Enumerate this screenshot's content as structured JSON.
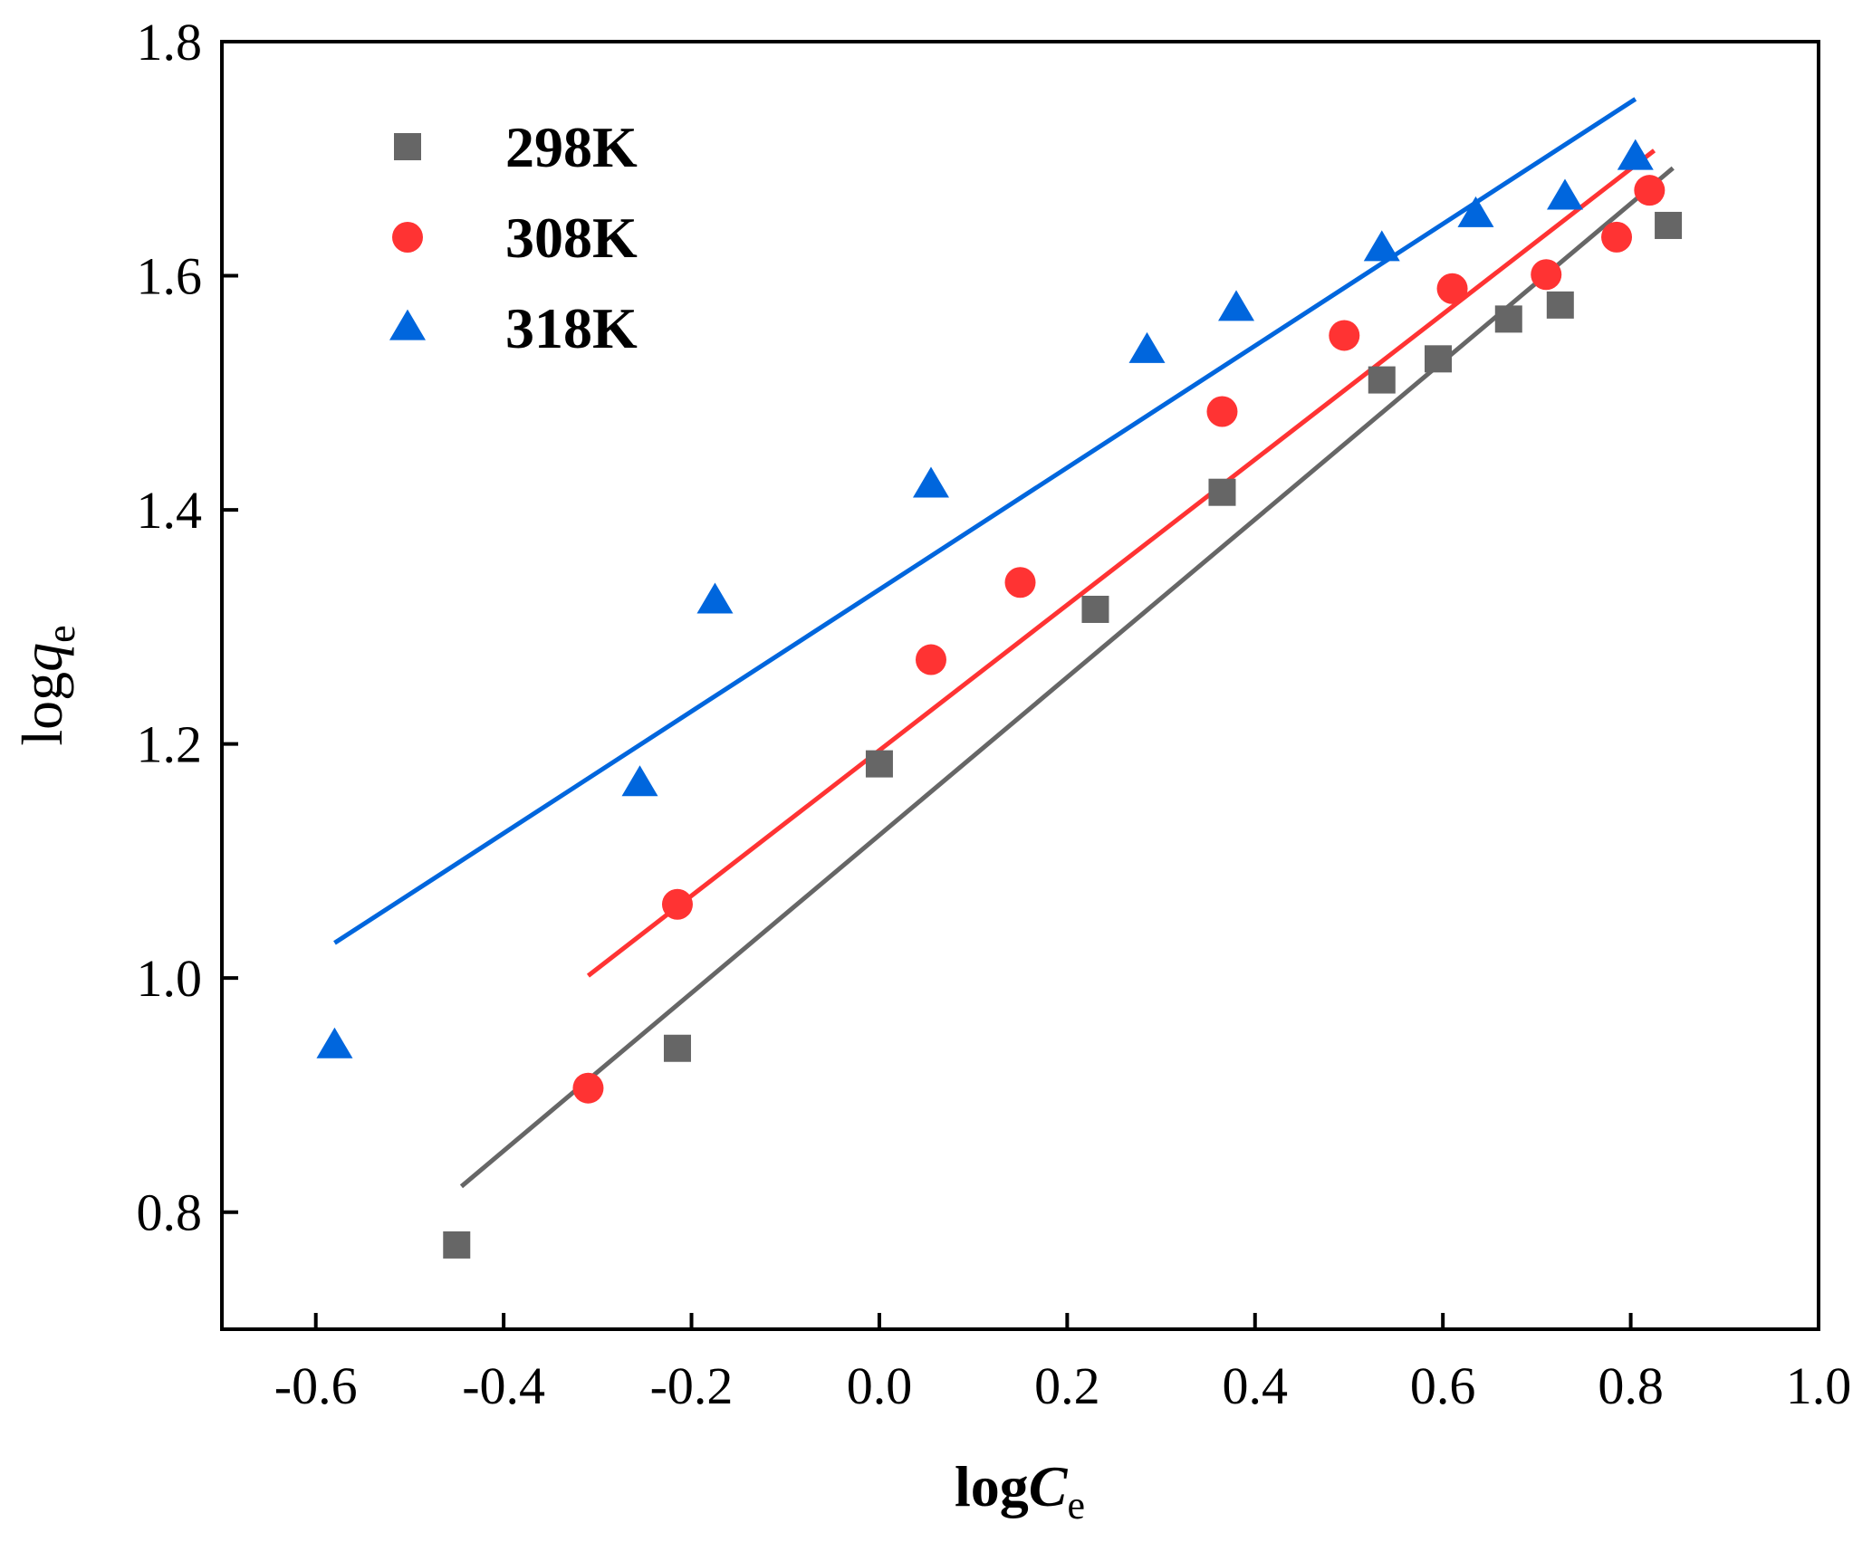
{
  "chart_data": {
    "type": "scatter",
    "xlabel": {
      "main": "log",
      "italic": "C",
      "sub": "e"
    },
    "ylabel": {
      "main": "log",
      "italic": "q",
      "sub": "e"
    },
    "xlim": [
      -0.7,
      1.0
    ],
    "ylim": [
      0.7,
      1.8
    ],
    "xticks": [
      -0.6,
      -0.4,
      -0.2,
      0.0,
      0.2,
      0.4,
      0.6,
      0.8,
      1.0
    ],
    "xtick_labels": [
      "-0.6",
      "-0.4",
      "-0.2",
      "0.0",
      "0.2",
      "0.4",
      "0.6",
      "0.8",
      "1.0"
    ],
    "yticks": [
      0.8,
      1.0,
      1.2,
      1.4,
      1.6,
      1.8
    ],
    "ytick_labels": [
      "0.8",
      "1.0",
      "1.2",
      "1.4",
      "1.6",
      "1.8"
    ],
    "legend_position": "top-left",
    "grid": false,
    "series": [
      {
        "name": "298K",
        "marker": "square",
        "color": "#666666",
        "x": [
          -0.45,
          -0.215,
          0.0,
          0.23,
          0.365,
          0.535,
          0.595,
          0.67,
          0.725,
          0.84
        ],
        "y": [
          0.772,
          0.94,
          1.183,
          1.315,
          1.415,
          1.511,
          1.529,
          1.563,
          1.575,
          1.643
        ],
        "fit": {
          "x": [
            -0.445,
            0.845
          ],
          "y": [
            0.822,
            1.692
          ]
        }
      },
      {
        "name": "308K",
        "marker": "circle",
        "color": "#ff3333",
        "x": [
          -0.31,
          -0.215,
          0.055,
          0.15,
          0.365,
          0.495,
          0.61,
          0.71,
          0.785,
          0.82
        ],
        "y": [
          0.906,
          1.063,
          1.272,
          1.338,
          1.484,
          1.549,
          1.589,
          1.601,
          1.633,
          1.673
        ],
        "fit": {
          "x": [
            -0.31,
            0.825
          ],
          "y": [
            1.002,
            1.707
          ]
        }
      },
      {
        "name": "318K",
        "marker": "triangle",
        "color": "#0066dd",
        "x": [
          -0.58,
          -0.255,
          -0.175,
          0.055,
          0.285,
          0.38,
          0.535,
          0.635,
          0.73,
          0.805
        ],
        "y": [
          0.942,
          1.166,
          1.322,
          1.421,
          1.536,
          1.572,
          1.623,
          1.652,
          1.667,
          1.701
        ],
        "fit": {
          "x": [
            -0.58,
            0.805
          ],
          "y": [
            1.03,
            1.751
          ]
        }
      }
    ]
  }
}
